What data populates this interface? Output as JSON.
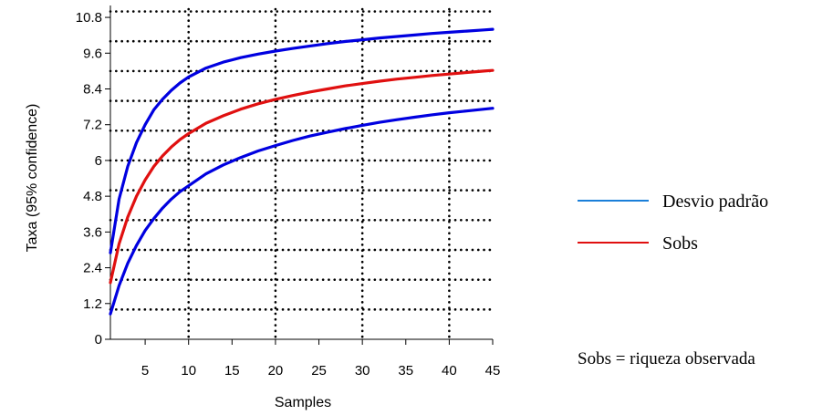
{
  "chart_data": {
    "type": "line",
    "xlabel": "Samples",
    "ylabel": "Taxa (95% confidence)",
    "xlim": [
      1,
      45
    ],
    "ylim": [
      0,
      11.2
    ],
    "x_ticks": [
      5,
      10,
      15,
      20,
      25,
      30,
      35,
      40,
      45
    ],
    "y_ticks": [
      0,
      1.2,
      2.4,
      3.6,
      4.8,
      6,
      7.2,
      8.4,
      9.6,
      10.8
    ],
    "y_tick_labels": [
      "0",
      "1.2",
      "2.4",
      "3.6",
      "4.8",
      "6",
      "7.2",
      "8.4",
      "9.6",
      "10.8"
    ],
    "grid": true,
    "x": [
      1,
      2,
      3,
      4,
      5,
      6,
      7,
      8,
      9,
      10,
      12,
      14,
      16,
      18,
      20,
      22,
      24,
      26,
      28,
      30,
      32,
      34,
      36,
      38,
      40,
      42,
      44,
      45
    ],
    "series": [
      {
        "name": "Desvio padrão",
        "color": "#0000e0",
        "values": [
          2.9,
          4.7,
          5.8,
          6.6,
          7.2,
          7.7,
          8.05,
          8.35,
          8.6,
          8.8,
          9.1,
          9.3,
          9.45,
          9.57,
          9.67,
          9.76,
          9.84,
          9.92,
          9.99,
          10.05,
          10.11,
          10.16,
          10.21,
          10.26,
          10.3,
          10.34,
          10.38,
          10.4
        ]
      },
      {
        "name": "Sobs",
        "color": "#e01010",
        "values": [
          1.9,
          3.2,
          4.1,
          4.8,
          5.35,
          5.8,
          6.15,
          6.45,
          6.7,
          6.9,
          7.25,
          7.5,
          7.72,
          7.9,
          8.05,
          8.18,
          8.3,
          8.4,
          8.5,
          8.58,
          8.66,
          8.73,
          8.79,
          8.85,
          8.9,
          8.95,
          9.0,
          9.02
        ]
      },
      {
        "color": "#0000e0",
        "values": [
          0.85,
          1.8,
          2.55,
          3.15,
          3.65,
          4.05,
          4.4,
          4.7,
          4.95,
          5.15,
          5.55,
          5.85,
          6.1,
          6.32,
          6.5,
          6.67,
          6.82,
          6.95,
          7.07,
          7.18,
          7.28,
          7.37,
          7.45,
          7.53,
          7.6,
          7.66,
          7.72,
          7.75
        ]
      }
    ],
    "legend": {
      "placement": "right",
      "entries": [
        {
          "label": "Desvio padrão",
          "color": "#1a7fd9"
        },
        {
          "label": "Sobs",
          "color": "#e01010"
        }
      ]
    },
    "annotation": "Sobs = riqueza observada"
  }
}
